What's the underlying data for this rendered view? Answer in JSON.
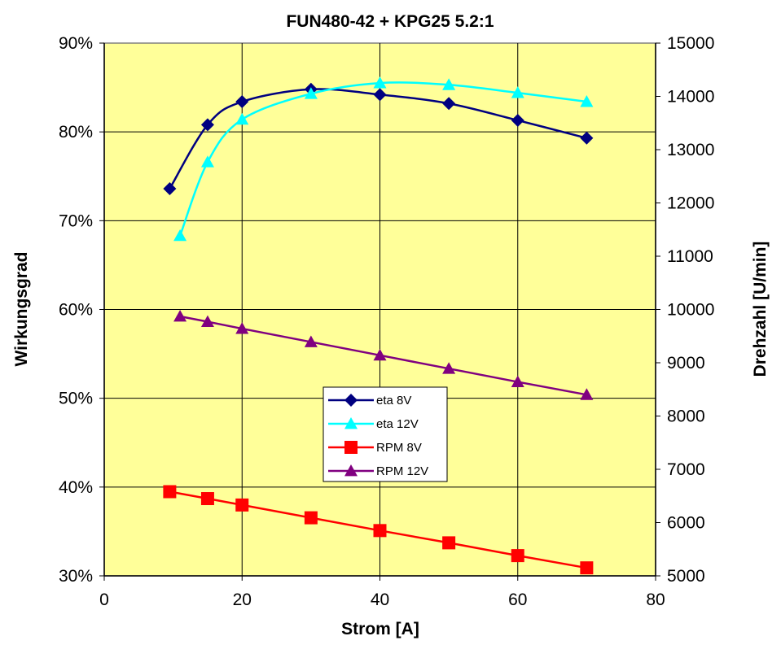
{
  "chart_data": {
    "type": "line",
    "title": "FUN480-42 + KPG25 5.2:1",
    "xlabel": "Strom [A]",
    "ylabel": "Wirkungsgrad",
    "y2label": "Drehzahl [U/min]",
    "xlim": [
      0,
      80
    ],
    "ylim": [
      0.3,
      0.9
    ],
    "y2lim": [
      5000,
      15000
    ],
    "xticks": [
      "0",
      "20",
      "40",
      "60",
      "80"
    ],
    "yticks": [
      "30%",
      "40%",
      "50%",
      "60%",
      "70%",
      "80%",
      "90%"
    ],
    "y2ticks": [
      "5000",
      "6000",
      "7000",
      "8000",
      "9000",
      "10000",
      "11000",
      "12000",
      "13000",
      "14000",
      "15000"
    ],
    "plot_background": "#ffff99",
    "grid": true,
    "legend_position": "center",
    "series": [
      {
        "name": "eta 8V",
        "axis": "left",
        "color": "#000080",
        "marker": "diamond",
        "smooth": true,
        "x": [
          9.5,
          15,
          20,
          30,
          40,
          50,
          60,
          70
        ],
        "y": [
          0.736,
          0.808,
          0.834,
          0.848,
          0.842,
          0.832,
          0.813,
          0.793
        ]
      },
      {
        "name": "eta 12V",
        "axis": "left",
        "color": "#00ffff",
        "marker": "triangle",
        "smooth": true,
        "x": [
          11,
          15,
          20,
          30,
          40,
          50,
          60,
          70
        ],
        "y": [
          0.683,
          0.766,
          0.814,
          0.843,
          0.855,
          0.853,
          0.844,
          0.834
        ]
      },
      {
        "name": "RPM 8V",
        "axis": "right",
        "color": "#ff0000",
        "marker": "square",
        "smooth": false,
        "x": [
          9.5,
          15,
          20,
          30,
          40,
          50,
          60,
          70
        ],
        "y": [
          6580,
          6450,
          6330,
          6090,
          5850,
          5620,
          5380,
          5150
        ]
      },
      {
        "name": "RPM 12V",
        "axis": "right",
        "color": "#800080",
        "marker": "triangle",
        "smooth": false,
        "x": [
          11,
          15,
          20,
          30,
          40,
          50,
          60,
          70
        ],
        "y": [
          9870,
          9770,
          9640,
          9390,
          9140,
          8890,
          8640,
          8400
        ]
      }
    ]
  }
}
